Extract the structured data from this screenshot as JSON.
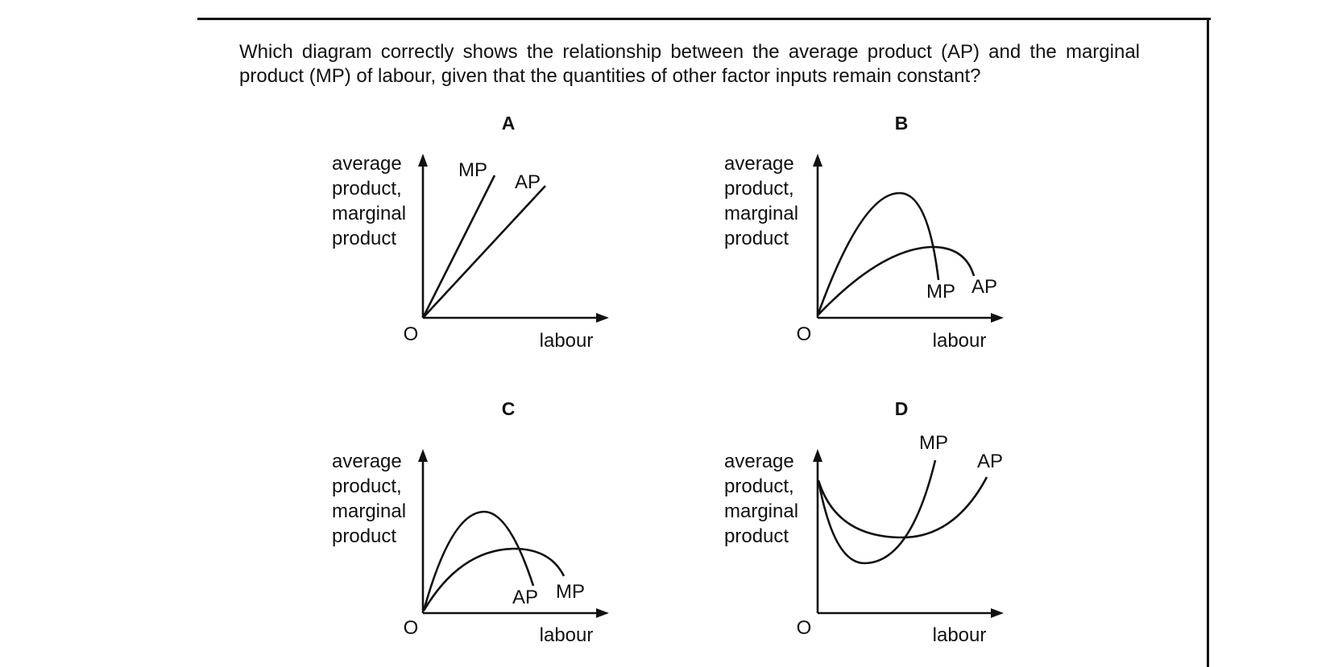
{
  "question": "Which diagram correctly shows the relationship between the average product (AP) and the marginal product (MP) of labour, given that the quantities of other factor inputs remain constant?",
  "panels": [
    {
      "letter": "A",
      "y_label": [
        "average",
        "product,",
        "marginal",
        "product"
      ],
      "origin": "O",
      "x_label": "labour",
      "curves": [
        "MP",
        "AP"
      ]
    },
    {
      "letter": "B",
      "y_label": [
        "average",
        "product,",
        "marginal",
        "product"
      ],
      "origin": "O",
      "x_label": "labour",
      "curves": [
        "MP",
        "AP"
      ]
    },
    {
      "letter": "C",
      "y_label": [
        "average",
        "product,",
        "marginal",
        "product"
      ],
      "origin": "O",
      "x_label": "labour",
      "curves": [
        "AP",
        "MP"
      ]
    },
    {
      "letter": "D",
      "y_label": [
        "average",
        "product,",
        "marginal",
        "product"
      ],
      "origin": "O",
      "x_label": "labour",
      "curves": [
        "MP",
        "AP"
      ]
    }
  ]
}
